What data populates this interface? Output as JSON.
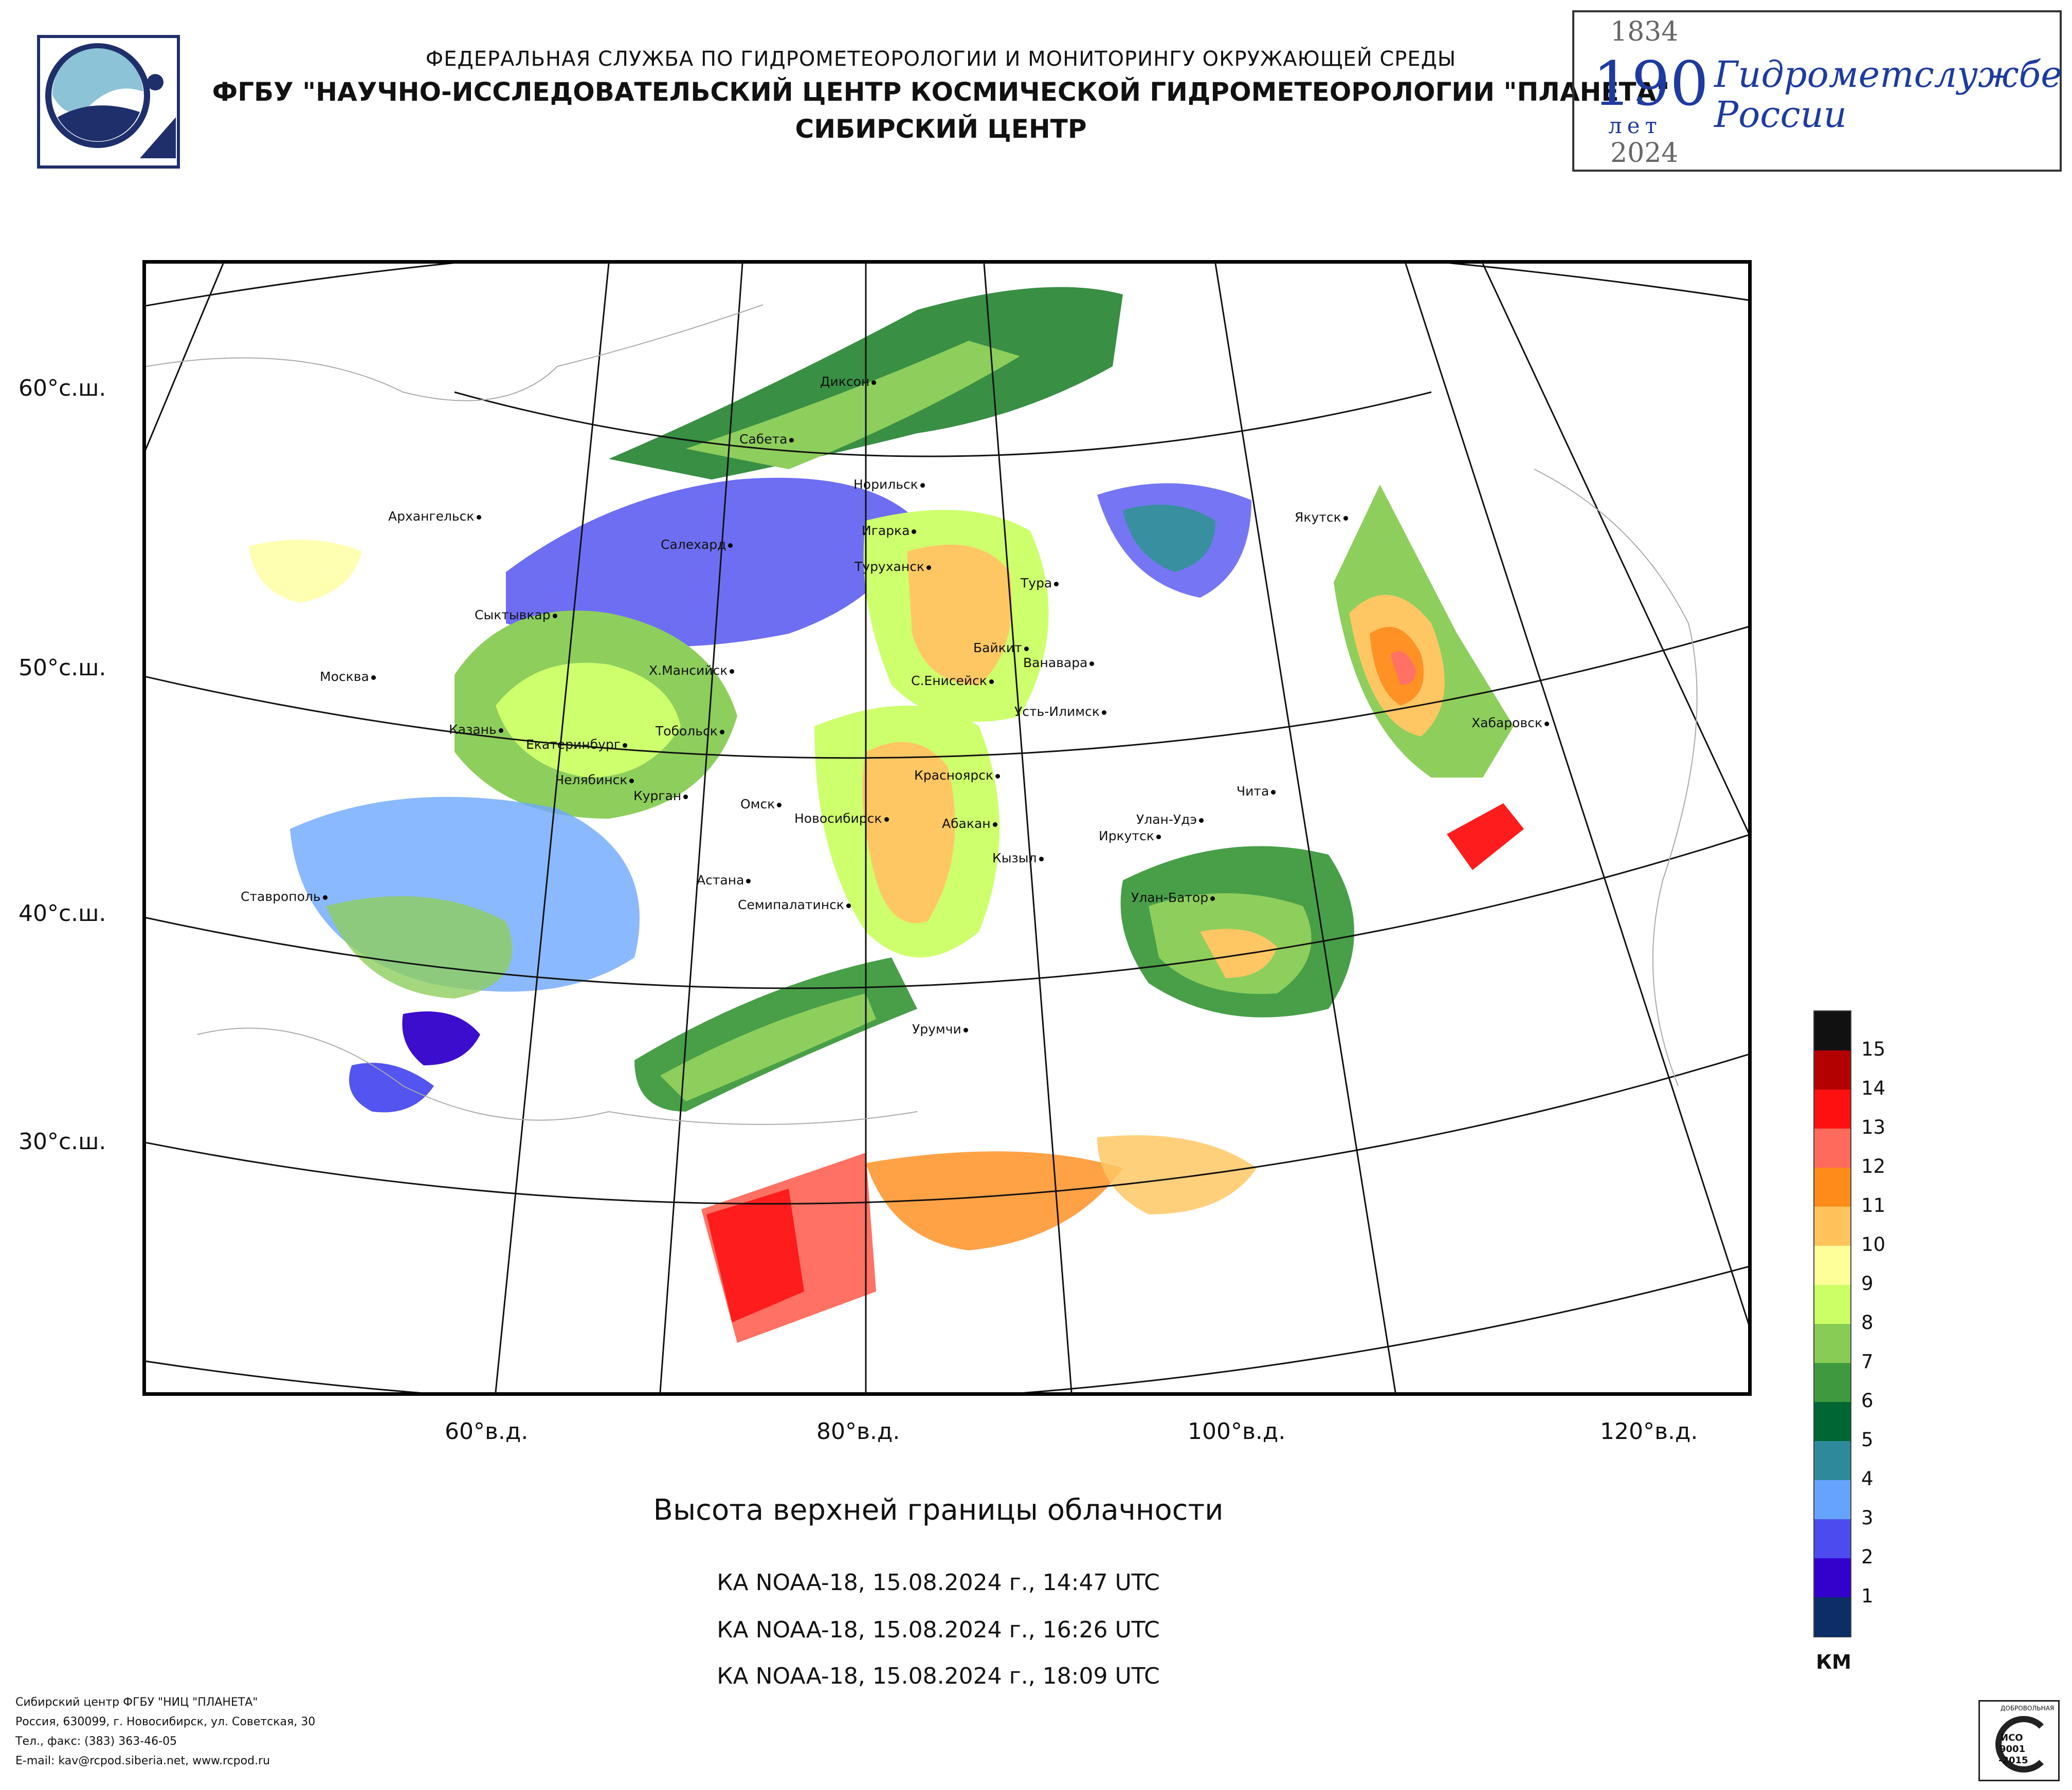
{
  "header": {
    "line1": "ФЕДЕРАЛЬНАЯ СЛУЖБА ПО ГИДРОМЕТЕОРОЛОГИИ И МОНИТОРИНГУ ОКРУЖАЮЩЕЙ СРЕДЫ",
    "line2": "ФГБУ \"НАУЧНО-ИССЛЕДОВАТЕЛЬСКИЙ ЦЕНТР КОСМИЧЕСКОЙ ГИДРОМЕТЕОРОЛОГИИ \"ПЛАНЕТА\"",
    "line3": "СИБИРСКИЙ ЦЕНТР"
  },
  "anniversary": {
    "year_start": "1834",
    "number": "190",
    "years_word": "лет",
    "year_end": "2024",
    "text_line1": "Гидрометслужбе",
    "text_line2": "России"
  },
  "map": {
    "lat_labels": [
      "60°с.ш.",
      "50°с.ш.",
      "40°с.ш.",
      "30°с.ш."
    ],
    "lon_labels": [
      "60°в.д.",
      "80°в.д.",
      "100°в.д.",
      "120°в.д."
    ],
    "cities": [
      "Диксон",
      "Сабета",
      "Норильск",
      "Архангельск",
      "Салехард",
      "Игарка",
      "Туруханск",
      "Тура",
      "Якутск",
      "Сыктывкар",
      "Байкит",
      "Ванавара",
      "Москва",
      "Х.Мансийск",
      "С.Енисейск",
      "Усть-Илимск",
      "Казань",
      "Екатеринбург",
      "Тобольск",
      "Хабаровск",
      "Челябинск",
      "Курган",
      "Красноярск",
      "Чита",
      "Омск",
      "Новосибирск",
      "Улан-Удэ",
      "Абакан",
      "Иркутск",
      "Кызыл",
      "Астана",
      "Ставрополь",
      "Семипалатинск",
      "Улан-Батор",
      "Урумчи"
    ]
  },
  "captions": {
    "title": "Высота верхней границы облачности",
    "pass1": "КА NOAA-18, 15.08.2024 г., 14:47 UTC",
    "pass2": "КА NOAA-18, 15.08.2024 г., 16:26 UTC",
    "pass3": "КА NOAA-18, 15.08.2024 г., 18:09 UTC"
  },
  "legend": {
    "unit": "КМ",
    "labels": [
      "15",
      "14",
      "13",
      "12",
      "11",
      "10",
      "9",
      "8",
      "7",
      "6",
      "5",
      "4",
      "3",
      "2",
      "1"
    ],
    "colors": [
      "#111111",
      "#b30000",
      "#ff1010",
      "#ff6a5c",
      "#ff8c1a",
      "#ffc45c",
      "#ffff99",
      "#ccff66",
      "#88cc55",
      "#3f9a3f",
      "#006633",
      "#2e8a9a",
      "#66a3ff",
      "#4b4bf0",
      "#3300cc",
      "#0d2d66"
    ]
  },
  "footer": {
    "line1": "Сибирский центр ФГБУ \"НИЦ \"ПЛАНЕТА\"",
    "line2": "Россия, 630099, г. Новосибирск, ул. Советская, 30",
    "line3": "Тел., факс: (383) 363-46-05",
    "line4": "E-mail: kav@rcpod.siberia.net, www.rcpod.ru"
  },
  "certification": {
    "line1": "ДОБРОВОЛЬНАЯ",
    "line2": "ИСО",
    "line3": "9001",
    "line4": "-2015"
  }
}
